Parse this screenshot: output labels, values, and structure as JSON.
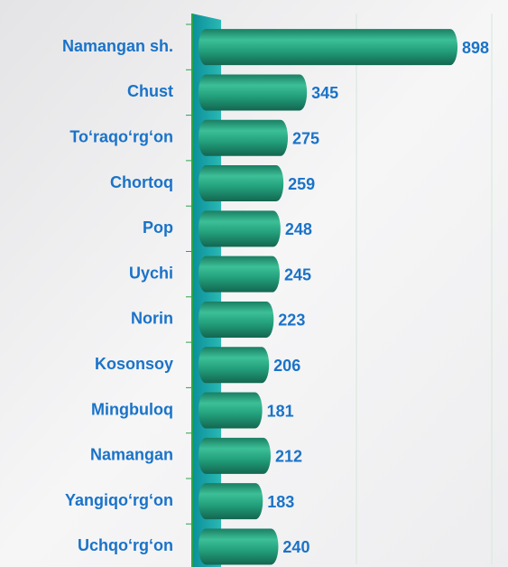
{
  "chart_data": {
    "type": "bar",
    "orientation": "horizontal",
    "categories": [
      "Namangan sh.",
      "Chust",
      "To‘raqo‘rg‘on",
      "Chortoq",
      "Pop",
      "Uychi",
      "Norin",
      "Kosonsoy",
      "Mingbuloq",
      "Namangan",
      "Yangiqo‘rg‘on",
      "Uchqo‘rg‘on"
    ],
    "values": [
      898,
      345,
      275,
      259,
      248,
      245,
      223,
      206,
      181,
      212,
      183,
      240
    ],
    "color": "#1f9e7c",
    "xlim": [
      0,
      1100
    ]
  }
}
